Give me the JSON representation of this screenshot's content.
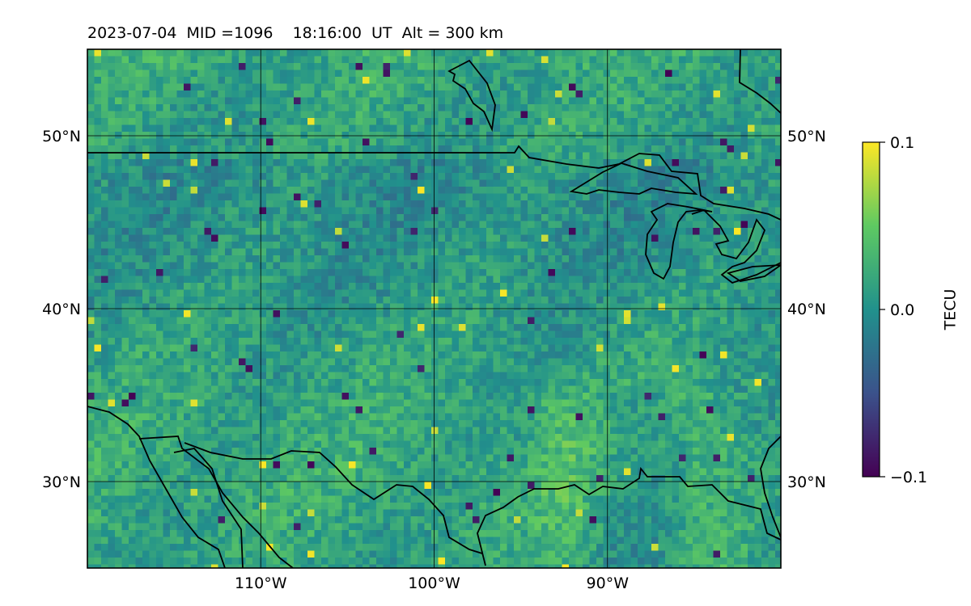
{
  "title": "2023-07-04  MID =1096    18:16:00  UT  Alt = 300 km",
  "map": {
    "lon_range": [
      -120,
      -80
    ],
    "lat_range": [
      25,
      55
    ],
    "lon_ticks": [
      {
        "value": -110,
        "label": "110°W"
      },
      {
        "value": -100,
        "label": "100°W"
      },
      {
        "value": -90,
        "label": "90°W"
      }
    ],
    "lat_ticks": [
      {
        "value": 30,
        "label": "30°N"
      },
      {
        "value": 40,
        "label": "40°N"
      },
      {
        "value": 50,
        "label": "50°N"
      }
    ],
    "grid_lines": true,
    "field": "TEC differential (noisy field, mostly near 0)",
    "colormap": "viridis"
  },
  "colorbar": {
    "label": "TECU",
    "min": -0.1,
    "max": 0.1,
    "ticks": [
      {
        "value": 0.1,
        "label": "0.1"
      },
      {
        "value": 0.0,
        "label": "0.0"
      },
      {
        "value": -0.1,
        "label": "−0.1"
      }
    ],
    "colors": [
      "#440154",
      "#3b528b",
      "#21918c",
      "#5ec962",
      "#fde725"
    ]
  }
}
